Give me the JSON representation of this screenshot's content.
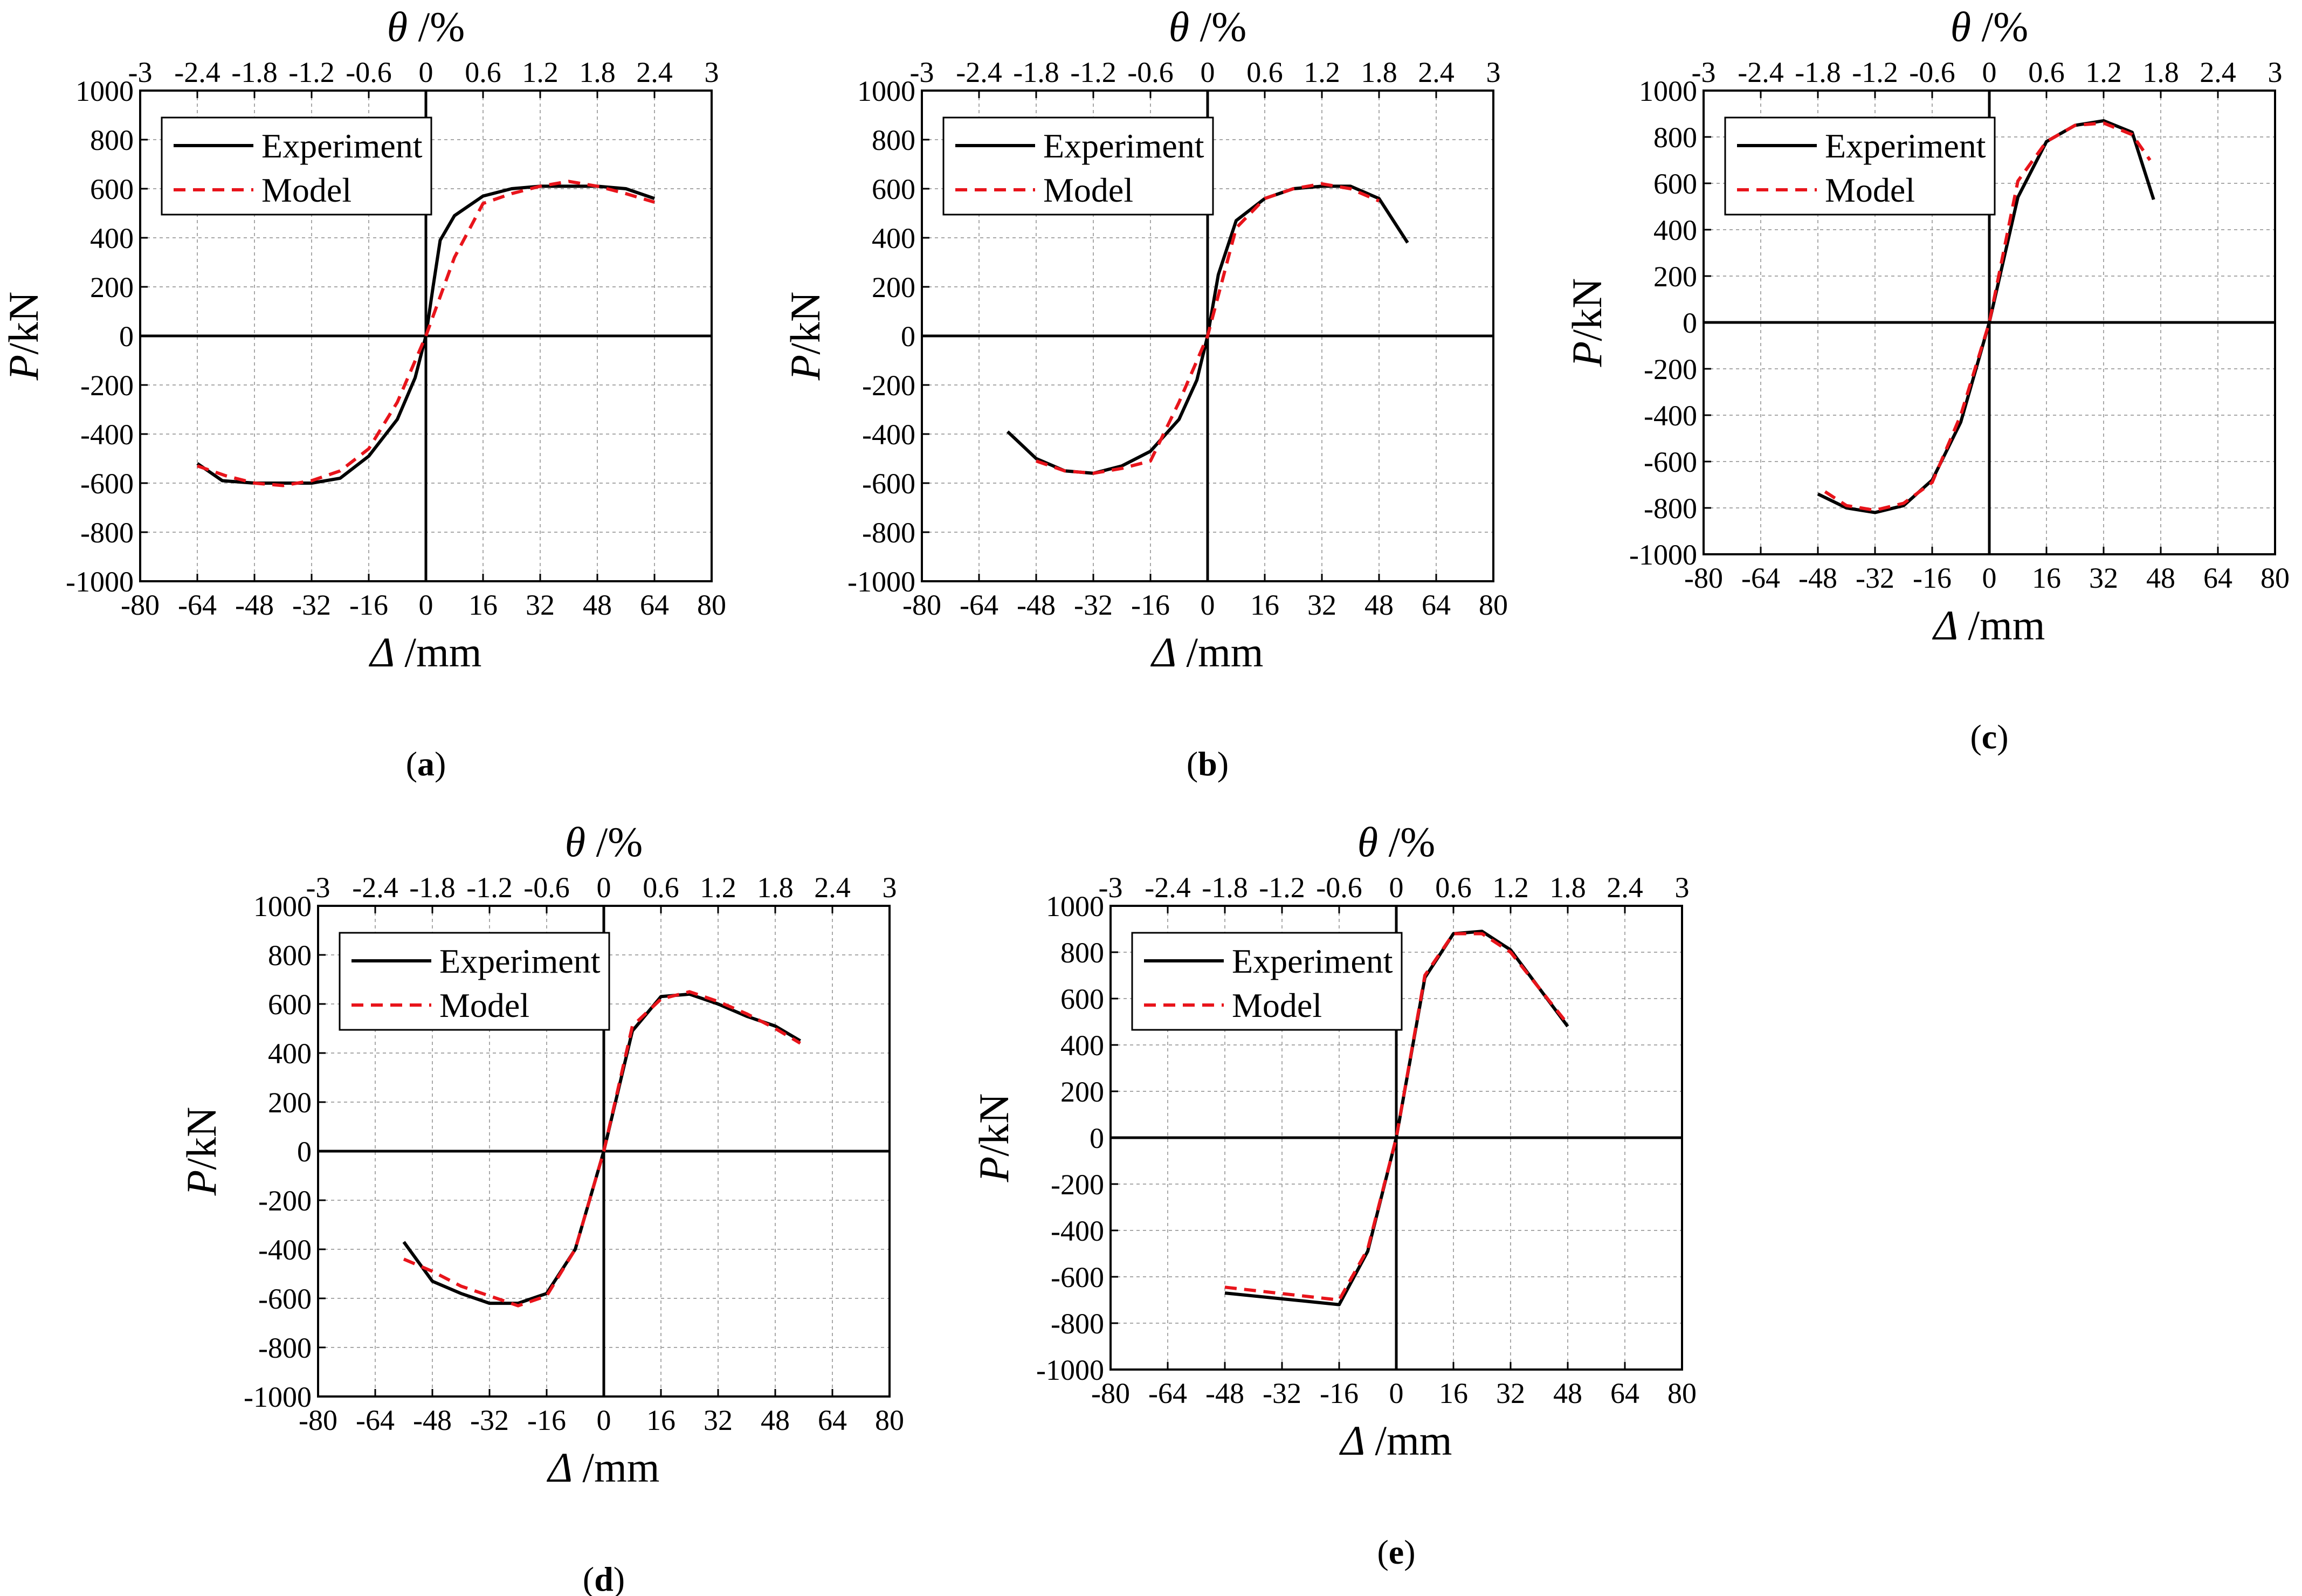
{
  "chart_data": [
    {
      "id": "a",
      "panel_label": "a",
      "type": "line",
      "xlabel": {
        "symbol": "Δ",
        "unit": "/mm"
      },
      "ylabel": {
        "symbol": "P",
        "unit": "/kN"
      },
      "x2label": {
        "symbol": "θ",
        "unit": "/%"
      },
      "xlim": [
        -80,
        80
      ],
      "ylim": [
        -1000,
        1000
      ],
      "x2lim": [
        -3,
        3
      ],
      "xticks": [
        "-80",
        "-64",
        "-48",
        "-32",
        "-16",
        "0",
        "16",
        "32",
        "48",
        "64",
        "80"
      ],
      "yticks": [
        "-1000",
        "-800",
        "-600",
        "-400",
        "-200",
        "0",
        "200",
        "400",
        "600",
        "800",
        "1000"
      ],
      "x2ticks": [
        "-3",
        "-2.4",
        "-1.8",
        "-1.2",
        "-0.6",
        "0",
        "0.6",
        "1.2",
        "1.8",
        "2.4",
        "3"
      ],
      "legend": {
        "position": "top-left",
        "entries": [
          "Experiment",
          "Model"
        ]
      },
      "grid": true,
      "series": [
        {
          "name": "Experiment",
          "x": [
            -64,
            -57,
            -48,
            -40,
            -32,
            -24,
            -16,
            -8,
            -3,
            0,
            2,
            4,
            8,
            16,
            24,
            32,
            40,
            48,
            56,
            64
          ],
          "y": [
            -520,
            -590,
            -600,
            -600,
            -600,
            -580,
            -490,
            -340,
            -170,
            0,
            200,
            390,
            490,
            570,
            600,
            610,
            610,
            610,
            600,
            560
          ]
        },
        {
          "name": "Model",
          "x": [
            -64,
            -56,
            -48,
            -40,
            -32,
            -24,
            -16,
            -8,
            0,
            8,
            16,
            24,
            32,
            40,
            48,
            56,
            64
          ],
          "y": [
            -530,
            -570,
            -600,
            -610,
            -590,
            -550,
            -460,
            -270,
            0,
            320,
            540,
            580,
            610,
            630,
            610,
            580,
            545
          ]
        }
      ]
    },
    {
      "id": "b",
      "panel_label": "b",
      "type": "line",
      "xlabel": {
        "symbol": "Δ",
        "unit": "/mm"
      },
      "ylabel": {
        "symbol": "P",
        "unit": "/kN"
      },
      "x2label": {
        "symbol": "θ",
        "unit": "/%"
      },
      "xlim": [
        -80,
        80
      ],
      "ylim": [
        -1000,
        1000
      ],
      "x2lim": [
        -3,
        3
      ],
      "xticks": [
        "-80",
        "-64",
        "-48",
        "-32",
        "-16",
        "0",
        "16",
        "32",
        "48",
        "64",
        "80"
      ],
      "yticks": [
        "-1000",
        "-800",
        "-600",
        "-400",
        "-200",
        "0",
        "200",
        "400",
        "600",
        "800",
        "1000"
      ],
      "x2ticks": [
        "-3",
        "-2.4",
        "-1.8",
        "-1.2",
        "-0.6",
        "0",
        "0.6",
        "1.2",
        "1.8",
        "2.4",
        "3"
      ],
      "legend": {
        "position": "top-left",
        "entries": [
          "Experiment",
          "Model"
        ]
      },
      "grid": true,
      "series": [
        {
          "name": "Experiment",
          "x": [
            -56,
            -48,
            -40,
            -32,
            -24,
            -16,
            -8,
            -3,
            0,
            3,
            8,
            16,
            24,
            32,
            40,
            48,
            56
          ],
          "y": [
            -390,
            -500,
            -550,
            -560,
            -530,
            -470,
            -340,
            -180,
            0,
            250,
            470,
            560,
            600,
            610,
            610,
            560,
            380
          ]
        },
        {
          "name": "Model",
          "x": [
            -48,
            -40,
            -32,
            -24,
            -16,
            -8,
            0,
            8,
            16,
            24,
            32,
            40,
            48
          ],
          "y": [
            -510,
            -550,
            -560,
            -540,
            -510,
            -270,
            0,
            440,
            560,
            600,
            620,
            600,
            550
          ]
        }
      ]
    },
    {
      "id": "c",
      "panel_label": "c",
      "type": "line",
      "xlabel": {
        "symbol": "Δ",
        "unit": "/mm"
      },
      "ylabel": {
        "symbol": "P",
        "unit": "/kN"
      },
      "x2label": {
        "symbol": "θ",
        "unit": "/%"
      },
      "xlim": [
        -80,
        80
      ],
      "ylim": [
        -1000,
        1000
      ],
      "x2lim": [
        -3,
        3
      ],
      "xticks": [
        "-80",
        "-64",
        "-48",
        "-32",
        "-16",
        "0",
        "16",
        "32",
        "48",
        "64",
        "80"
      ],
      "yticks": [
        "-1000",
        "-800",
        "-600",
        "-400",
        "-200",
        "0",
        "200",
        "400",
        "600",
        "800",
        "1000"
      ],
      "x2ticks": [
        "-3",
        "-2.4",
        "-1.8",
        "-1.2",
        "-0.6",
        "0",
        "0.6",
        "1.2",
        "1.8",
        "2.4",
        "3"
      ],
      "legend": {
        "position": "top-left",
        "entries": [
          "Experiment",
          "Model"
        ]
      },
      "grid": true,
      "series": [
        {
          "name": "Experiment",
          "x": [
            -48,
            -40,
            -32,
            -24,
            -16,
            -8,
            0,
            8,
            16,
            24,
            32,
            40,
            46
          ],
          "y": [
            -740,
            -800,
            -820,
            -790,
            -680,
            -430,
            0,
            540,
            780,
            850,
            870,
            820,
            530
          ]
        },
        {
          "name": "Model",
          "x": [
            -46,
            -40,
            -32,
            -24,
            -16,
            -8,
            0,
            8,
            16,
            24,
            32,
            40,
            45
          ],
          "y": [
            -730,
            -790,
            -810,
            -780,
            -690,
            -400,
            0,
            610,
            780,
            850,
            860,
            810,
            700
          ]
        }
      ]
    },
    {
      "id": "d",
      "panel_label": "d",
      "type": "line",
      "xlabel": {
        "symbol": "Δ",
        "unit": "/mm"
      },
      "ylabel": {
        "symbol": "P",
        "unit": "/kN"
      },
      "x2label": {
        "symbol": "θ",
        "unit": "/%"
      },
      "xlim": [
        -80,
        80
      ],
      "ylim": [
        -1000,
        1000
      ],
      "x2lim": [
        -3,
        3
      ],
      "xticks": [
        "-80",
        "-64",
        "-48",
        "-32",
        "-16",
        "0",
        "16",
        "32",
        "48",
        "64",
        "80"
      ],
      "yticks": [
        "-1000",
        "-800",
        "-600",
        "-400",
        "-200",
        "0",
        "200",
        "400",
        "600",
        "800",
        "1000"
      ],
      "x2ticks": [
        "-3",
        "-2.4",
        "-1.8",
        "-1.2",
        "-0.6",
        "0",
        "0.6",
        "1.2",
        "1.8",
        "2.4",
        "3"
      ],
      "legend": {
        "position": "top-left",
        "entries": [
          "Experiment",
          "Model"
        ]
      },
      "grid": true,
      "series": [
        {
          "name": "Experiment",
          "x": [
            -56,
            -48,
            -40,
            -32,
            -24,
            -16,
            -8,
            0,
            8,
            16,
            24,
            32,
            40,
            48,
            55
          ],
          "y": [
            -370,
            -530,
            -580,
            -620,
            -620,
            -580,
            -400,
            0,
            490,
            630,
            640,
            600,
            550,
            510,
            450
          ]
        },
        {
          "name": "Model",
          "x": [
            -56,
            -48,
            -40,
            -32,
            -24,
            -16,
            -8,
            0,
            8,
            16,
            24,
            32,
            40,
            48,
            55
          ],
          "y": [
            -440,
            -490,
            -550,
            -590,
            -630,
            -590,
            -400,
            0,
            510,
            620,
            650,
            610,
            560,
            500,
            440
          ]
        }
      ]
    },
    {
      "id": "e",
      "panel_label": "e",
      "type": "line",
      "xlabel": {
        "symbol": "Δ",
        "unit": "/mm"
      },
      "ylabel": {
        "symbol": "P",
        "unit": "/kN"
      },
      "x2label": {
        "symbol": "θ",
        "unit": "/%"
      },
      "xlim": [
        -80,
        80
      ],
      "ylim": [
        -1000,
        1000
      ],
      "x2lim": [
        -3,
        3
      ],
      "xticks": [
        "-80",
        "-64",
        "-48",
        "-32",
        "-16",
        "0",
        "16",
        "32",
        "48",
        "64",
        "80"
      ],
      "yticks": [
        "-1000",
        "-800",
        "-600",
        "-400",
        "-200",
        "0",
        "200",
        "400",
        "600",
        "800",
        "1000"
      ],
      "x2ticks": [
        "-3",
        "-2.4",
        "-1.8",
        "-1.2",
        "-0.6",
        "0",
        "0.6",
        "1.2",
        "1.8",
        "2.4",
        "3"
      ],
      "legend": {
        "position": "top-left",
        "entries": [
          "Experiment",
          "Model"
        ]
      },
      "grid": true,
      "series": [
        {
          "name": "Experiment",
          "x": [
            -48,
            -16,
            -8,
            0,
            8,
            16,
            24,
            32,
            48
          ],
          "y": [
            -670,
            -720,
            -490,
            0,
            690,
            880,
            890,
            810,
            480
          ]
        },
        {
          "name": "Model",
          "x": [
            -48,
            -16,
            -8,
            0,
            8,
            16,
            24,
            32,
            48
          ],
          "y": [
            -645,
            -700,
            -480,
            0,
            700,
            880,
            880,
            800,
            490
          ]
        }
      ]
    }
  ]
}
